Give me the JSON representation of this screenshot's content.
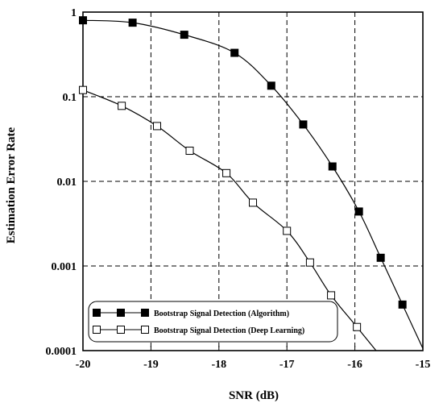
{
  "chart_data": {
    "type": "line",
    "title": "",
    "xlabel": "SNR (dB)",
    "ylabel": "Estimation Error Rate",
    "xlim": [
      -20,
      -15
    ],
    "ylim": [
      0.0001,
      1
    ],
    "yscale": "log",
    "grid": true,
    "legend_position": "bottom-left",
    "x_ticks": [
      "-20",
      "-19",
      "-18",
      "-17",
      "-16",
      "-15"
    ],
    "y_ticks": [
      "1",
      "0.1",
      "0.01",
      "0.001",
      "0.0001"
    ],
    "series": [
      {
        "name": "Bootstrap Signal Detection (Algorithm)",
        "marker": "filled-square",
        "color": "#000000",
        "x": [
          -20.0,
          -19.27,
          -18.51,
          -17.77,
          -17.23,
          -16.76,
          -16.33,
          -15.94,
          -15.62,
          -15.3
        ],
        "y": [
          0.8,
          0.75,
          0.54,
          0.33,
          0.135,
          0.047,
          0.015,
          0.0044,
          0.00125,
          0.00035
        ]
      },
      {
        "name": "Bootstrap Signal Detection (Deep Learning)",
        "marker": "open-square",
        "color": "#000000",
        "x": [
          -20.0,
          -19.43,
          -18.91,
          -18.43,
          -17.89,
          -17.5,
          -17.0,
          -16.66,
          -16.35,
          -15.97
        ],
        "y": [
          0.12,
          0.078,
          0.045,
          0.023,
          0.0125,
          0.0056,
          0.0026,
          0.0011,
          0.00045,
          0.00019
        ]
      }
    ]
  }
}
